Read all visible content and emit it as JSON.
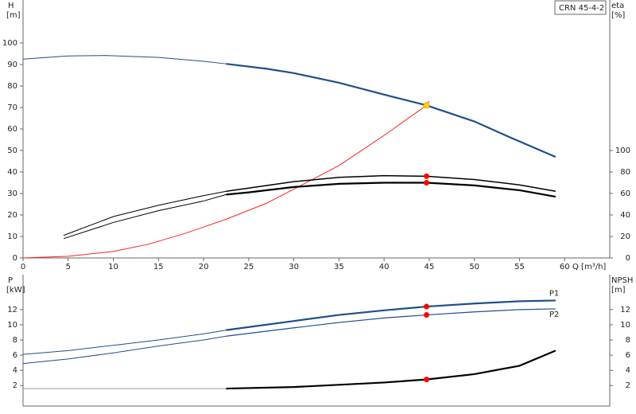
{
  "chart_data": [
    {
      "type": "line",
      "legend_label": "CRN 45-4-2",
      "ylabel": "H",
      "yunit": "[m]",
      "y2label": "eta",
      "y2unit": "[%]",
      "xlabel": "Q [m³/h]",
      "xlim": [
        0,
        65
      ],
      "xticks": [
        0,
        5,
        10,
        15,
        20,
        25,
        30,
        35,
        40,
        45,
        50,
        55,
        60
      ],
      "ylim": [
        0,
        120
      ],
      "yticks": [
        0,
        10,
        20,
        30,
        40,
        50,
        60,
        70,
        80,
        90,
        100
      ],
      "y2lim": [
        0,
        240
      ],
      "y2ticks": [
        0,
        20,
        40,
        60,
        80,
        100
      ],
      "series": [
        {
          "color": "#1f4e8c",
          "width": 1,
          "x": [
            0,
            5,
            9,
            15,
            20,
            22.5
          ],
          "values": [
            92.5,
            94,
            94.2,
            93.3,
            91.5,
            90.3
          ]
        },
        {
          "color": "#1f4e8c",
          "width": 2.2,
          "x": [
            22.5,
            27,
            30,
            35,
            40,
            44.7,
            50,
            54,
            59
          ],
          "values": [
            90.3,
            88,
            86,
            81.5,
            76,
            71,
            63.5,
            56,
            47
          ]
        },
        {
          "color": "#ff2020",
          "width": 1,
          "x": [
            0,
            5,
            10,
            14,
            18,
            22.5,
            27,
            30,
            35,
            40,
            44.7,
            45
          ],
          "values": [
            0,
            0.8,
            3,
            6.5,
            11.5,
            18,
            25.5,
            32,
            43,
            57,
            71,
            73
          ]
        },
        {
          "color": "#000000",
          "width": 1,
          "axis": "y2",
          "x": [
            4.5,
            10,
            15,
            20,
            22.5
          ],
          "values": [
            21,
            38.5,
            49,
            58,
            62
          ]
        },
        {
          "color": "#000000",
          "width": 1.5,
          "axis": "y2",
          "x": [
            22.5,
            25,
            30,
            35,
            40,
            44.7,
            50,
            55,
            59
          ],
          "values": [
            62,
            65,
            71,
            75,
            76.6,
            76,
            73,
            68,
            62
          ]
        },
        {
          "color": "#000000",
          "width": 1,
          "axis": "y2",
          "x": [
            4.5,
            10,
            15,
            20,
            22.5
          ],
          "values": [
            18,
            33,
            44,
            53,
            59
          ]
        },
        {
          "color": "#000000",
          "width": 2.2,
          "axis": "y2",
          "x": [
            22.5,
            25,
            30,
            35,
            40,
            44.7,
            50,
            55,
            59
          ],
          "values": [
            59,
            61,
            66,
            69,
            70,
            70,
            67.5,
            63,
            57
          ]
        },
        {
          "marker": true,
          "color": "#ffd700",
          "x": [
            44.7
          ],
          "values": [
            71
          ]
        },
        {
          "marker": true,
          "color": "#ff0000",
          "axis": "y2",
          "x": [
            44.7,
            44.7
          ],
          "values": [
            76,
            70
          ]
        }
      ]
    },
    {
      "type": "line",
      "ylabel": "P",
      "yunit": "[kW]",
      "y2label": "NPSH",
      "y2unit": "[m]",
      "xlim": [
        0,
        65
      ],
      "ylim": [
        -0.7,
        16.6
      ],
      "yticks": [
        2,
        4,
        6,
        8,
        10,
        12
      ],
      "y2lim": [
        -0.7,
        16.6
      ],
      "y2ticks": [
        2,
        4,
        6,
        8,
        10,
        12
      ],
      "series": [
        {
          "color": "#1f4e8c",
          "width": 1,
          "x": [
            0,
            5,
            10,
            15,
            20,
            22.5
          ],
          "values": [
            6.1,
            6.6,
            7.3,
            8.0,
            8.8,
            9.3
          ]
        },
        {
          "name": "P1",
          "color": "#1f4e8c",
          "width": 2.2,
          "x": [
            22.5,
            30,
            35,
            40,
            44.7,
            50,
            55,
            59
          ],
          "values": [
            9.3,
            10.5,
            11.3,
            11.9,
            12.4,
            12.8,
            13.1,
            13.2
          ]
        },
        {
          "color": "#1f4e8c",
          "width": 1,
          "x": [
            0,
            5,
            10,
            15,
            20,
            22.5
          ],
          "values": [
            4.9,
            5.5,
            6.3,
            7.2,
            8.0,
            8.5
          ]
        },
        {
          "name": "P2",
          "color": "#1f4e8c",
          "width": 1.2,
          "x": [
            22.5,
            30,
            35,
            40,
            44.7,
            50,
            55,
            59
          ],
          "values": [
            8.5,
            9.6,
            10.3,
            10.9,
            11.3,
            11.7,
            12.0,
            12.1
          ]
        },
        {
          "color": "#999999",
          "width": 1,
          "axis": "y2",
          "x": [
            0,
            22.5
          ],
          "values": [
            1.6,
            1.6
          ]
        },
        {
          "color": "#000000",
          "width": 2.2,
          "axis": "y2",
          "x": [
            22.5,
            30,
            35,
            40,
            44.7,
            50,
            55,
            59
          ],
          "values": [
            1.6,
            1.8,
            2.1,
            2.4,
            2.8,
            3.5,
            4.6,
            6.6
          ]
        },
        {
          "marker": true,
          "color": "#ff0000",
          "x": [
            44.7,
            44.7
          ],
          "values": [
            12.4,
            11.3
          ]
        },
        {
          "marker": true,
          "color": "#ff0000",
          "axis": "y2",
          "x": [
            44.7
          ],
          "values": [
            2.8
          ]
        }
      ]
    }
  ]
}
